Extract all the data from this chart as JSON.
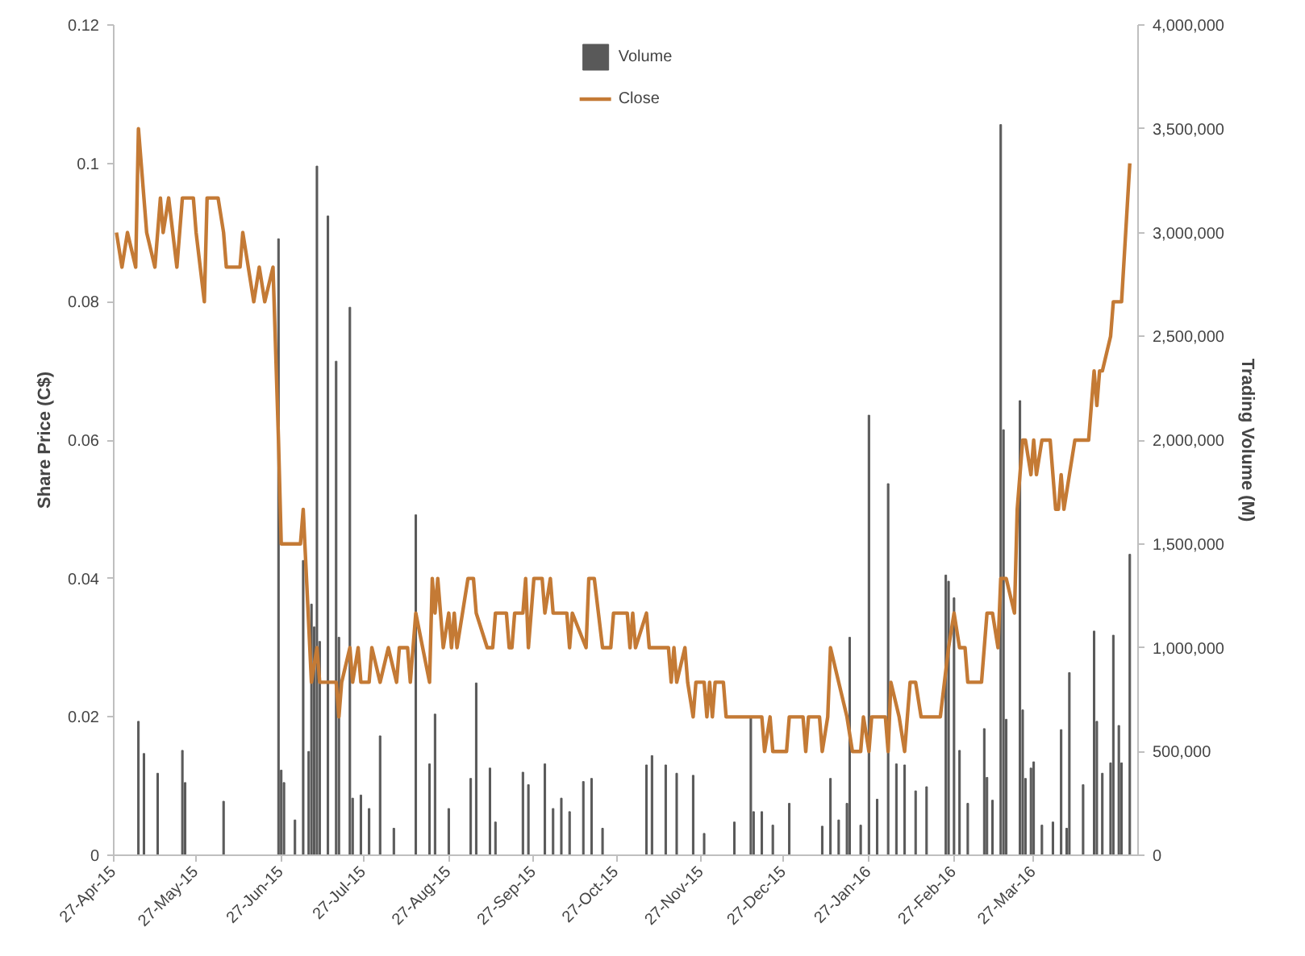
{
  "chart_data": {
    "type": "line",
    "ylabel": "Share Price (C$)",
    "y2label": "Trading Volume (M)",
    "xlim": [
      "2015-04-27",
      "2016-05-04"
    ],
    "xticks": [
      {
        "value": "2015-04-27",
        "label": "27-Apr-15"
      },
      {
        "value": "2015-05-27",
        "label": "27-May-15"
      },
      {
        "value": "2015-06-27",
        "label": "27-Jun-15"
      },
      {
        "value": "2015-07-27",
        "label": "27-Jul-15"
      },
      {
        "value": "2015-08-27",
        "label": "27-Aug-15"
      },
      {
        "value": "2015-09-27",
        "label": "27-Sep-15"
      },
      {
        "value": "2015-10-27",
        "label": "27-Oct-15"
      },
      {
        "value": "2015-11-27",
        "label": "27-Nov-15"
      },
      {
        "value": "2015-12-27",
        "label": "27-Dec-15"
      },
      {
        "value": "2016-01-27",
        "label": "27-Jan-16"
      },
      {
        "value": "2016-02-27",
        "label": "27-Feb-16"
      },
      {
        "value": "2016-03-27",
        "label": "27-Mar-16"
      }
    ],
    "ylim": [
      0,
      0.12
    ],
    "yticks": [
      0,
      0.02,
      0.04,
      0.06,
      0.08,
      0.1,
      0.12
    ],
    "y2lim": [
      0,
      4000000
    ],
    "y2ticks": [
      0,
      {
        "value": 500000,
        "label": "500,000"
      },
      {
        "value": 1000000,
        "label": "1,000,000"
      },
      {
        "value": 1500000,
        "label": "1,500,000"
      },
      {
        "value": 2000000,
        "label": "2,000,000"
      },
      {
        "value": 2500000,
        "label": "2,500,000"
      },
      {
        "value": 3000000,
        "label": "3,000,000"
      },
      {
        "value": 3500000,
        "label": "3,500,000"
      },
      {
        "value": 4000000,
        "label": "4,000,000"
      }
    ],
    "grid": false,
    "legend": "top",
    "series": [
      {
        "name": "Volume",
        "type": "bar",
        "axis": "y2",
        "color": "#595959",
        "x": [
          "2015-05-06",
          "2015-05-08",
          "2015-05-13",
          "2015-05-22",
          "2015-05-23",
          "2015-06-06",
          "2015-06-26",
          "2015-06-27",
          "2015-06-28",
          "2015-07-02",
          "2015-07-05",
          "2015-07-07",
          "2015-07-08",
          "2015-07-09",
          "2015-07-10",
          "2015-07-11",
          "2015-07-14",
          "2015-07-17",
          "2015-07-18",
          "2015-07-22",
          "2015-07-23",
          "2015-07-26",
          "2015-07-29",
          "2015-08-02",
          "2015-08-07",
          "2015-08-15",
          "2015-08-20",
          "2015-08-22",
          "2015-08-27",
          "2015-09-04",
          "2015-09-06",
          "2015-09-11",
          "2015-09-13",
          "2015-09-23",
          "2015-09-25",
          "2015-10-01",
          "2015-10-04",
          "2015-10-07",
          "2015-10-10",
          "2015-10-15",
          "2015-10-18",
          "2015-10-22",
          "2015-11-07",
          "2015-11-09",
          "2015-11-14",
          "2015-11-18",
          "2015-11-24",
          "2015-11-28",
          "2015-12-09",
          "2015-12-15",
          "2015-12-16",
          "2015-12-19",
          "2015-12-23",
          "2015-12-29",
          "2016-01-10",
          "2016-01-13",
          "2016-01-16",
          "2016-01-19",
          "2016-01-20",
          "2016-01-24",
          "2016-01-27",
          "2016-01-30",
          "2016-02-03",
          "2016-02-06",
          "2016-02-09",
          "2016-02-13",
          "2016-02-17",
          "2016-02-24",
          "2016-02-25",
          "2016-02-27",
          "2016-02-29",
          "2016-03-03",
          "2016-03-09",
          "2016-03-10",
          "2016-03-12",
          "2016-03-15",
          "2016-03-16",
          "2016-03-17",
          "2016-03-22",
          "2016-03-23",
          "2016-03-24",
          "2016-03-26",
          "2016-03-27",
          "2016-03-30",
          "2016-04-03",
          "2016-04-06",
          "2016-04-08",
          "2016-04-09",
          "2016-04-14",
          "2016-04-18",
          "2016-04-19",
          "2016-04-21",
          "2016-04-24",
          "2016-04-25",
          "2016-04-27",
          "2016-04-28",
          "2016-05-01"
        ],
        "values": [
          645000,
          490000,
          395000,
          505000,
          350000,
          260000,
          2970000,
          410000,
          350000,
          170000,
          1420000,
          500000,
          1210000,
          1100000,
          3320000,
          1030000,
          3080000,
          2380000,
          1050000,
          2640000,
          275000,
          290000,
          225000,
          575000,
          130000,
          1640000,
          440000,
          680000,
          225000,
          370000,
          830000,
          420000,
          160000,
          400000,
          340000,
          440000,
          225000,
          275000,
          210000,
          355000,
          370000,
          130000,
          435000,
          480000,
          435000,
          395000,
          385000,
          105000,
          160000,
          660000,
          210000,
          210000,
          145000,
          250000,
          140000,
          370000,
          170000,
          250000,
          1050000,
          145000,
          2120000,
          270000,
          1790000,
          440000,
          435000,
          310000,
          330000,
          1350000,
          1320000,
          1240000,
          505000,
          250000,
          610000,
          375000,
          265000,
          3520000,
          2050000,
          655000,
          2190000,
          700000,
          370000,
          420000,
          450000,
          145000,
          160000,
          605000,
          130000,
          880000,
          340000,
          1080000,
          645000,
          395000,
          445000,
          1060000,
          625000,
          445000,
          1450000
        ]
      },
      {
        "name": "Close",
        "color": "#c47a35",
        "x": [
          "2015-04-28",
          "2015-04-30",
          "2015-05-02",
          "2015-05-05",
          "2015-05-06",
          "2015-05-09",
          "2015-05-12",
          "2015-05-14",
          "2015-05-15",
          "2015-05-17",
          "2015-05-20",
          "2015-05-22",
          "2015-05-26",
          "2015-05-27",
          "2015-05-30",
          "2015-05-31",
          "2015-06-04",
          "2015-06-06",
          "2015-06-07",
          "2015-06-12",
          "2015-06-13",
          "2015-06-17",
          "2015-06-19",
          "2015-06-21",
          "2015-06-24",
          "2015-06-26",
          "2015-06-27",
          "2015-07-04",
          "2015-07-05",
          "2015-07-08",
          "2015-07-10",
          "2015-07-11",
          "2015-07-17",
          "2015-07-18",
          "2015-07-19",
          "2015-07-22",
          "2015-07-23",
          "2015-07-25",
          "2015-07-26",
          "2015-07-29",
          "2015-07-30",
          "2015-08-02",
          "2015-08-05",
          "2015-08-08",
          "2015-08-09",
          "2015-08-12",
          "2015-08-13",
          "2015-08-15",
          "2015-08-20",
          "2015-08-21",
          "2015-08-22",
          "2015-08-23",
          "2015-08-25",
          "2015-08-27",
          "2015-08-28",
          "2015-08-29",
          "2015-08-30",
          "2015-09-03",
          "2015-09-05",
          "2015-09-06",
          "2015-09-10",
          "2015-09-12",
          "2015-09-13",
          "2015-09-17",
          "2015-09-18",
          "2015-09-19",
          "2015-09-20",
          "2015-09-23",
          "2015-09-24",
          "2015-09-25",
          "2015-09-27",
          "2015-09-30",
          "2015-10-01",
          "2015-10-03",
          "2015-10-04",
          "2015-10-09",
          "2015-10-10",
          "2015-10-11",
          "2015-10-16",
          "2015-10-17",
          "2015-10-19",
          "2015-10-22",
          "2015-10-25",
          "2015-10-26",
          "2015-10-31",
          "2015-11-01",
          "2015-11-02",
          "2015-11-03",
          "2015-11-07",
          "2015-11-08",
          "2015-11-15",
          "2015-11-16",
          "2015-11-17",
          "2015-11-18",
          "2015-11-21",
          "2015-11-22",
          "2015-11-24",
          "2015-11-25",
          "2015-11-28",
          "2015-11-29",
          "2015-11-30",
          "2015-12-01",
          "2015-12-02",
          "2015-12-05",
          "2015-12-06",
          "2015-12-19",
          "2015-12-20",
          "2015-12-22",
          "2015-12-23",
          "2015-12-28",
          "2015-12-29",
          "2016-01-03",
          "2016-01-04",
          "2016-01-05",
          "2016-01-09",
          "2016-01-10",
          "2016-01-12",
          "2016-01-13",
          "2016-01-16",
          "2016-01-19",
          "2016-01-21",
          "2016-01-24",
          "2016-01-25",
          "2016-01-27",
          "2016-01-28",
          "2016-02-02",
          "2016-02-03",
          "2016-02-04",
          "2016-02-07",
          "2016-02-09",
          "2016-02-11",
          "2016-02-13",
          "2016-02-15",
          "2016-02-22",
          "2016-02-25",
          "2016-02-27",
          "2016-02-29",
          "2016-03-02",
          "2016-03-03",
          "2016-03-08",
          "2016-03-10",
          "2016-03-12",
          "2016-03-14",
          "2016-03-15",
          "2016-03-17",
          "2016-03-20",
          "2016-03-21",
          "2016-03-23",
          "2016-03-24",
          "2016-03-26",
          "2016-03-27",
          "2016-03-28",
          "2016-03-30",
          "2016-04-02",
          "2016-04-04",
          "2016-04-05",
          "2016-04-06",
          "2016-04-07",
          "2016-04-11",
          "2016-04-16",
          "2016-04-18",
          "2016-04-19",
          "2016-04-20",
          "2016-04-21",
          "2016-04-24",
          "2016-04-25",
          "2016-04-28",
          "2016-05-01"
        ],
        "values": [
          0.09,
          0.085,
          0.09,
          0.085,
          0.105,
          0.09,
          0.085,
          0.095,
          0.09,
          0.095,
          0.085,
          0.095,
          0.095,
          0.09,
          0.08,
          0.095,
          0.095,
          0.09,
          0.085,
          0.085,
          0.09,
          0.08,
          0.085,
          0.08,
          0.085,
          0.06,
          0.045,
          0.045,
          0.05,
          0.025,
          0.03,
          0.025,
          0.025,
          0.02,
          0.025,
          0.03,
          0.025,
          0.03,
          0.025,
          0.025,
          0.03,
          0.025,
          0.03,
          0.025,
          0.03,
          0.03,
          0.025,
          0.035,
          0.025,
          0.04,
          0.035,
          0.04,
          0.03,
          0.035,
          0.03,
          0.035,
          0.03,
          0.04,
          0.04,
          0.035,
          0.03,
          0.03,
          0.035,
          0.035,
          0.03,
          0.03,
          0.035,
          0.035,
          0.04,
          0.03,
          0.04,
          0.04,
          0.035,
          0.04,
          0.035,
          0.035,
          0.03,
          0.035,
          0.03,
          0.04,
          0.04,
          0.03,
          0.03,
          0.035,
          0.035,
          0.03,
          0.035,
          0.03,
          0.035,
          0.03,
          0.03,
          0.025,
          0.03,
          0.025,
          0.03,
          0.025,
          0.02,
          0.025,
          0.025,
          0.02,
          0.025,
          0.02,
          0.025,
          0.025,
          0.02,
          0.02,
          0.015,
          0.02,
          0.015,
          0.015,
          0.02,
          0.02,
          0.015,
          0.02,
          0.02,
          0.015,
          0.02,
          0.03,
          0.025,
          0.02,
          0.015,
          0.015,
          0.02,
          0.015,
          0.02,
          0.02,
          0.015,
          0.025,
          0.02,
          0.015,
          0.025,
          0.025,
          0.02,
          0.02,
          0.03,
          0.035,
          0.03,
          0.03,
          0.025,
          0.025,
          0.035,
          0.035,
          0.03,
          0.04,
          0.04,
          0.035,
          0.05,
          0.06,
          0.06,
          0.055,
          0.06,
          0.055,
          0.06,
          0.06,
          0.05,
          0.05,
          0.055,
          0.05,
          0.06,
          0.06,
          0.07,
          0.065,
          0.07,
          0.07,
          0.075,
          0.08,
          0.08,
          0.1
        ]
      }
    ]
  }
}
